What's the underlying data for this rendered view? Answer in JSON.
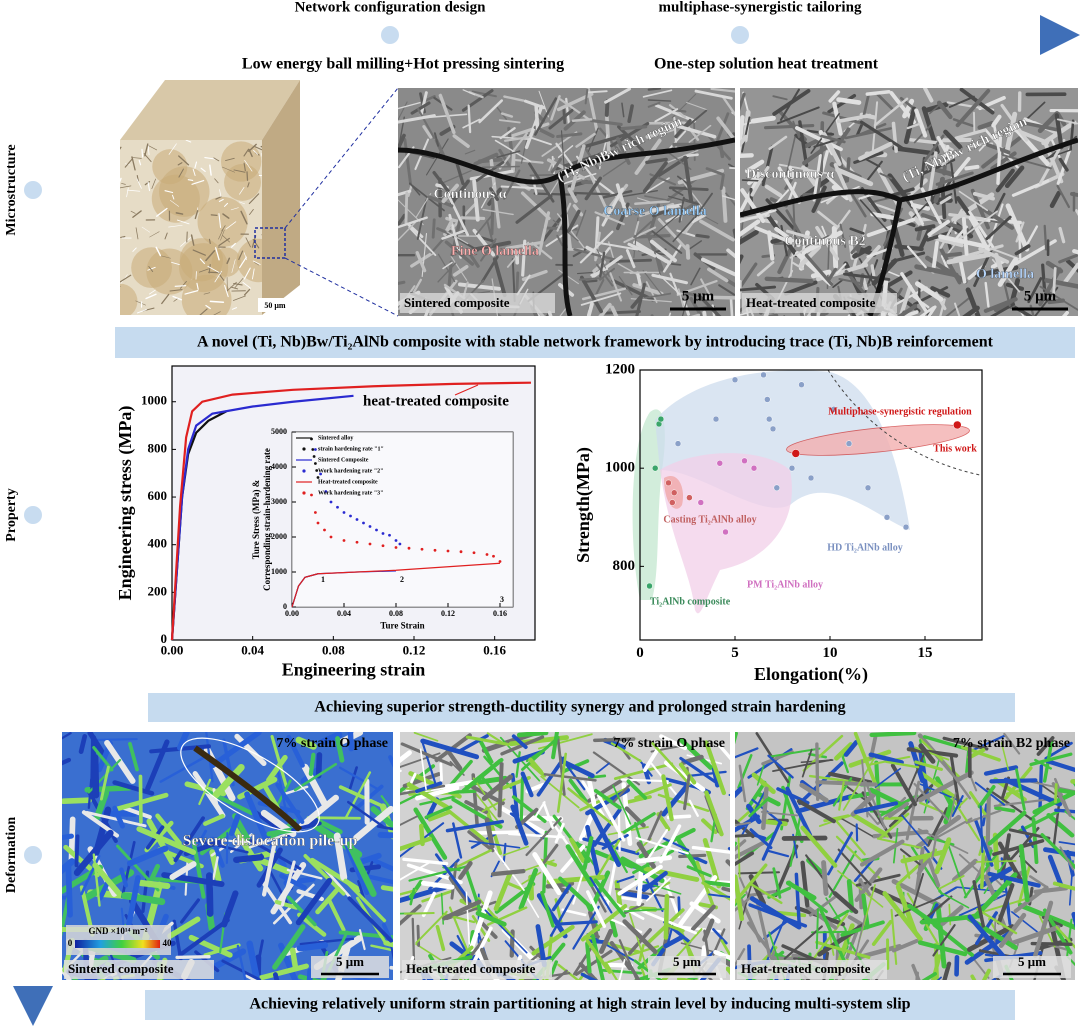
{
  "timeline": {
    "stages": [
      "Network configuration design",
      "multiphase-synergistic tailoring"
    ]
  },
  "sections": [
    "Microstructure",
    "Property",
    "Deformation"
  ],
  "microstructure": {
    "processes": [
      "Low energy ball milling+Hot pressing sintering",
      "One-step solution heat treatment"
    ],
    "cube_scale": "50 μm",
    "panels": [
      {
        "labels": [
          "(Ti, Nb)Bw rich region",
          "Continous α",
          "Coarse O lamella",
          "Fine O lamella"
        ],
        "caption": "Sintered composite",
        "scale": "5 μm"
      },
      {
        "labels": [
          "Discontinous α",
          "(Ti, Nb)Bw rich region",
          "Continous B2",
          "O lamella"
        ],
        "caption": "Heat-treated composite",
        "scale": "5 μm"
      }
    ],
    "banner": "A novel (Ti, Nb)Bw/Ti₂AlNb composite with stable network framework by introducing trace (Ti, Nb)B reinforcement"
  },
  "chart_data": [
    {
      "type": "line",
      "xlabel": "Engineering strain",
      "ylabel": "Engineering stress (MPa)",
      "xlim": [
        0,
        0.18
      ],
      "ylim": [
        0,
        1150
      ],
      "xticks": [
        {
          "value": 0,
          "label": "0.00"
        },
        {
          "value": 0.04,
          "label": "0.04"
        },
        {
          "value": 0.08,
          "label": "0.08"
        },
        {
          "value": 0.12,
          "label": "0.12"
        },
        {
          "value": 0.16,
          "label": "0.16"
        }
      ],
      "yticks": [
        0,
        200,
        400,
        600,
        800,
        1000
      ],
      "annotations": [
        "heat-treated composite"
      ],
      "series": [
        {
          "color": "#111111",
          "x": [
            0,
            0.005,
            0.008,
            0.012,
            0.018,
            0.027
          ],
          "values": [
            0,
            600,
            780,
            870,
            920,
            960
          ]
        },
        {
          "color": "#2a2ad0",
          "x": [
            0,
            0.005,
            0.008,
            0.012,
            0.02,
            0.04,
            0.06,
            0.09
          ],
          "values": [
            0,
            600,
            800,
            900,
            950,
            980,
            1000,
            1025
          ]
        },
        {
          "color": "#e02020",
          "x": [
            0,
            0.004,
            0.007,
            0.01,
            0.015,
            0.03,
            0.06,
            0.1,
            0.14,
            0.178
          ],
          "values": [
            0,
            560,
            850,
            960,
            1000,
            1030,
            1050,
            1065,
            1075,
            1080
          ]
        }
      ]
    },
    {
      "type": "line",
      "xlabel": "Ture Strain",
      "ylabel": [
        "Ture Stress (MPa) &",
        "Corresponding strain-hardening rate"
      ],
      "xlim": [
        0,
        0.17
      ],
      "ylim": [
        0,
        5000
      ],
      "xticks": [
        {
          "value": 0,
          "label": "0.00"
        },
        {
          "value": 0.04,
          "label": "0.04"
        },
        {
          "value": 0.08,
          "label": "0.08"
        },
        {
          "value": 0.12,
          "label": "0.12"
        },
        {
          "value": 0.16,
          "label": "0.16"
        }
      ],
      "yticks": [
        0,
        1000,
        2000,
        3000,
        4000,
        5000
      ],
      "annotations": [
        "1",
        "2",
        "3"
      ],
      "series": [
        {
          "name": "Sintered alloy",
          "color": "#111111",
          "markers": false,
          "x": [
            0,
            0.005,
            0.01,
            0.02
          ],
          "values": [
            0,
            600,
            850,
            950
          ]
        },
        {
          "name": "strain hardening rate \"1\"",
          "color": "#111111",
          "markers": true,
          "x": [
            0.015,
            0.016,
            0.017,
            0.018,
            0.019,
            0.02
          ],
          "values": [
            4800,
            4500,
            4300,
            4100,
            3900,
            3700
          ]
        },
        {
          "name": "Sintered Composite",
          "color": "#2a2ad0",
          "markers": false,
          "x": [
            0,
            0.005,
            0.01,
            0.02,
            0.05,
            0.08
          ],
          "values": [
            0,
            600,
            850,
            950,
            1000,
            1030
          ]
        },
        {
          "name": "Work hardening rate \"2\"",
          "color": "#2a2ad0",
          "markers": true,
          "x": [
            0.018,
            0.022,
            0.026,
            0.03,
            0.035,
            0.04,
            0.045,
            0.05,
            0.055,
            0.06,
            0.065,
            0.07,
            0.075,
            0.08,
            0.083
          ],
          "values": [
            4500,
            3800,
            3300,
            3000,
            2850,
            2700,
            2600,
            2500,
            2400,
            2300,
            2200,
            2100,
            2050,
            1900,
            1800
          ]
        },
        {
          "name": "Heat-treated composite",
          "color": "#e02020",
          "markers": false,
          "x": [
            0,
            0.005,
            0.01,
            0.02,
            0.08,
            0.12,
            0.16
          ],
          "values": [
            0,
            600,
            850,
            950,
            1050,
            1150,
            1250
          ]
        },
        {
          "name": "Work hardening rate \"3\"",
          "color": "#e02020",
          "markers": true,
          "x": [
            0.015,
            0.018,
            0.02,
            0.025,
            0.03,
            0.04,
            0.05,
            0.06,
            0.07,
            0.08,
            0.09,
            0.1,
            0.11,
            0.12,
            0.13,
            0.14,
            0.15,
            0.155,
            0.16
          ],
          "values": [
            3200,
            2700,
            2400,
            2200,
            2000,
            1900,
            1850,
            1800,
            1750,
            1700,
            1680,
            1650,
            1620,
            1600,
            1580,
            1550,
            1500,
            1450,
            1300
          ]
        }
      ]
    },
    {
      "type": "scatter",
      "xlabel": "Elongation(%)",
      "ylabel": "Strength(MPa)",
      "xlim": [
        0,
        18
      ],
      "ylim": [
        650,
        1200
      ],
      "xticks": [
        0,
        5,
        10,
        15
      ],
      "yticks": [
        800,
        1000,
        1200
      ],
      "annotations": [
        "Multiphase-synergistic regulation"
      ],
      "series": [
        {
          "name": "Ti₂AlNb composite",
          "color": "#3aa56a",
          "x": [
            0.5,
            0.8,
            1.0,
            1.1
          ],
          "values": [
            760,
            1000,
            1090,
            1100
          ]
        },
        {
          "name": "Casting Ti₂AlNb alloy",
          "color": "#d06060",
          "x": [
            1.5,
            1.7,
            1.8,
            2.6
          ],
          "values": [
            970,
            930,
            950,
            940
          ]
        },
        {
          "name": "PM Ti₂AlNb alloy",
          "color": "#d070c0",
          "x": [
            3.2,
            4.2,
            4.5,
            5.5,
            6.0
          ],
          "values": [
            930,
            1010,
            870,
            1015,
            1000
          ]
        },
        {
          "name": "HD Ti₂AlNb alloy",
          "color": "#8aa0c8",
          "x": [
            2.0,
            4.0,
            5.0,
            6.5,
            6.7,
            6.8,
            7.0,
            7.2,
            8.0,
            8.5,
            9.0,
            10.2,
            11.0,
            12.0,
            13.0,
            14.0
          ],
          "values": [
            1050,
            1100,
            1180,
            1190,
            1140,
            1100,
            1080,
            960,
            1000,
            1170,
            980,
            1120,
            1050,
            960,
            900,
            880
          ]
        },
        {
          "name": "This work",
          "color": "#d01818",
          "x": [
            8.2,
            16.7
          ],
          "values": [
            1030,
            1088
          ]
        }
      ]
    }
  ],
  "property": {
    "banner": "Achieving superior strength-ductility synergy and prolonged strain hardening"
  },
  "deformation": {
    "panels": [
      {
        "label": "7% strain   O phase",
        "caption": "Sintered composite",
        "scale": "5 μm",
        "note": "Severe dislocation pile-up"
      },
      {
        "label": "7% strain   O phase",
        "caption": "Heat-treated composite",
        "scale": "5 μm"
      },
      {
        "label": "7% strain   B2 phase",
        "caption": "Heat-treated composite",
        "scale": "5 μm"
      }
    ],
    "colorbar": {
      "title": "GND ×10¹⁴ m⁻²",
      "min": 0,
      "max": 40
    },
    "banner": "Achieving relatively uniform strain partitioning at high strain level by inducing multi-system slip"
  }
}
